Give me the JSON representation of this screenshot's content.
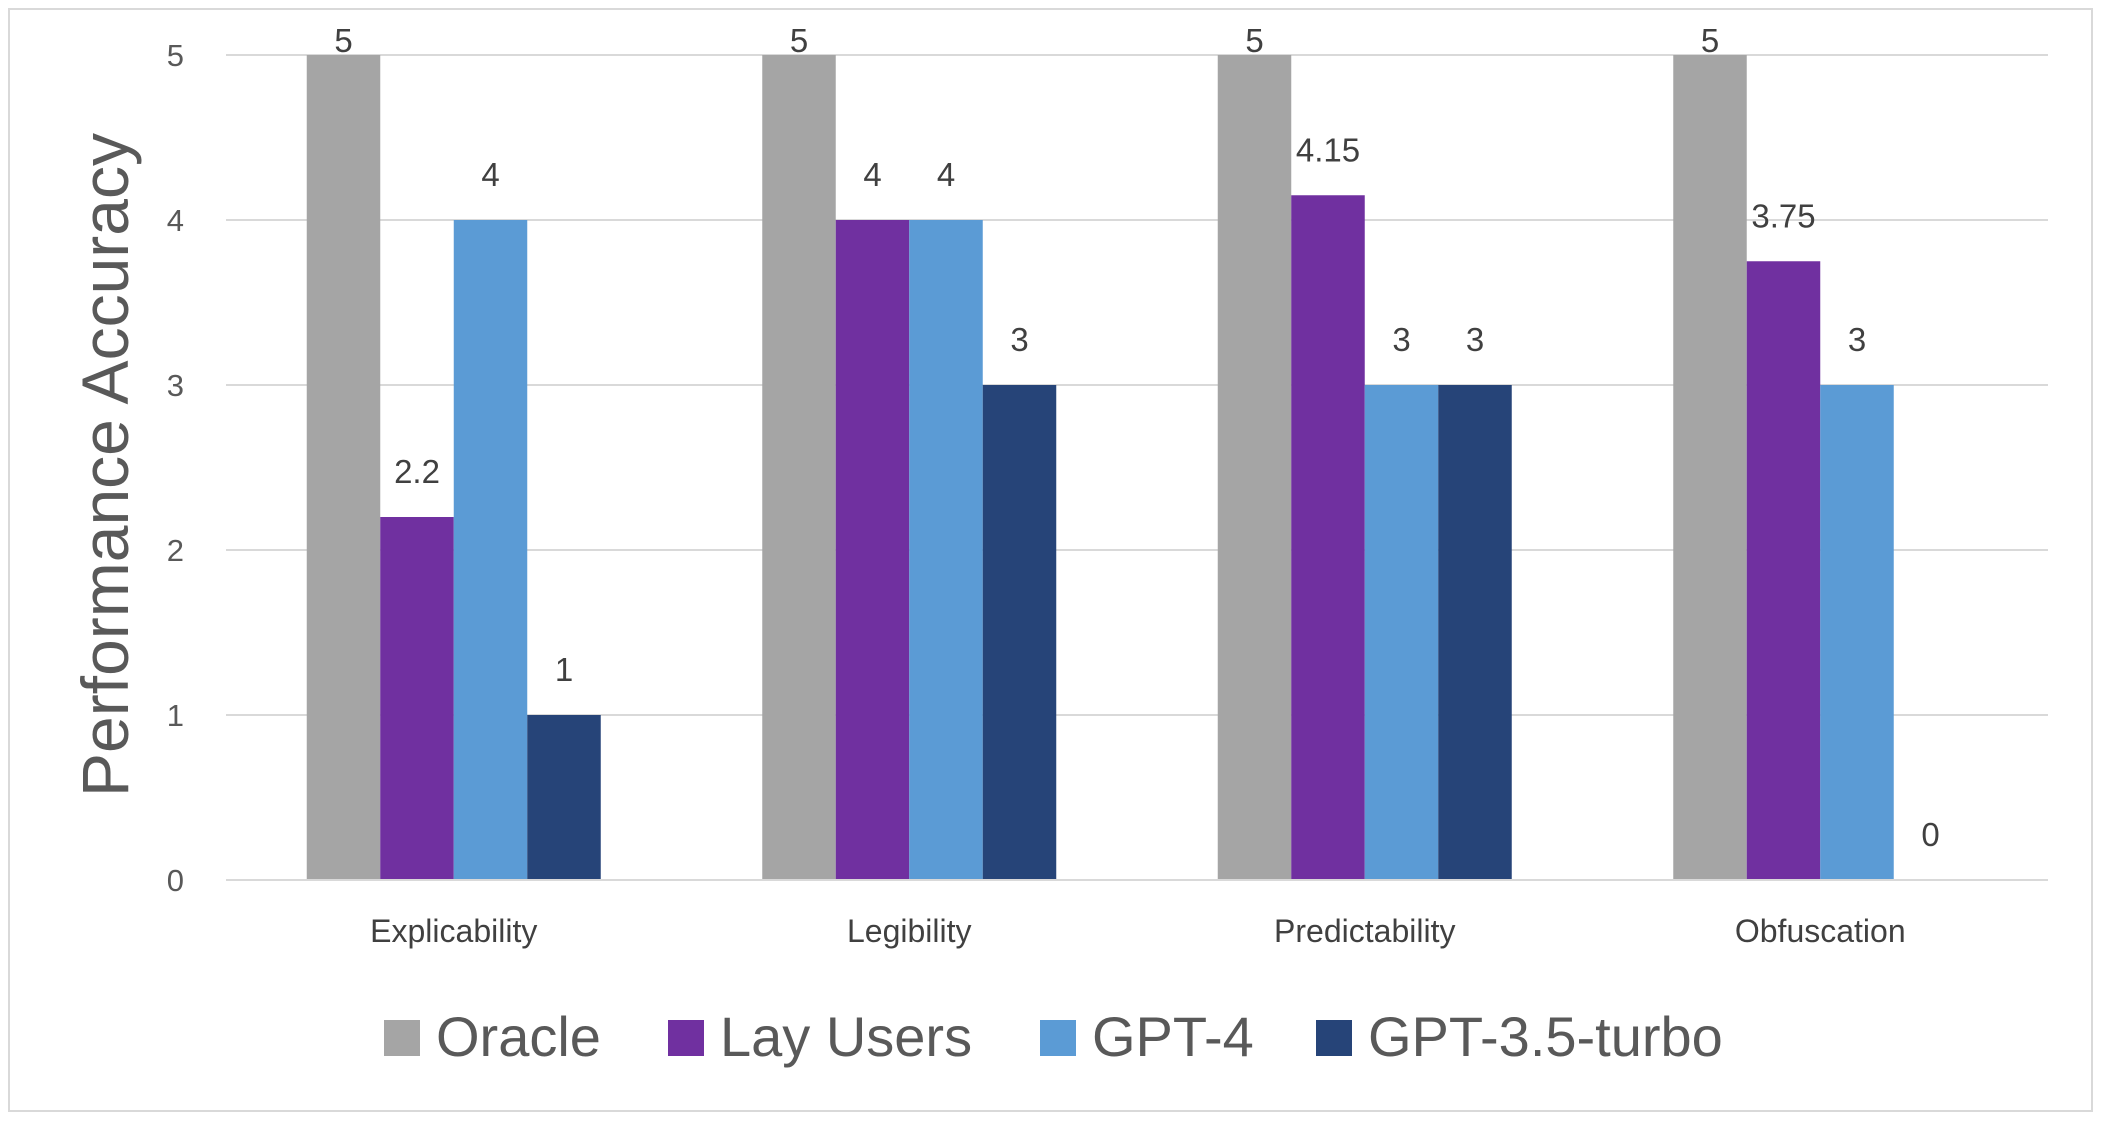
{
  "chart_data": {
    "type": "bar",
    "title": "",
    "xlabel": "",
    "ylabel": "Performance Accuracy",
    "ylim": [
      0,
      5
    ],
    "yticks": [
      0,
      1,
      2,
      3,
      4,
      5
    ],
    "grid": true,
    "legend_position": "bottom",
    "categories": [
      "Explicability",
      "Legibility",
      "Predictability",
      "Obfuscation"
    ],
    "series": [
      {
        "name": "Oracle",
        "color": "#a5a5a5",
        "values": [
          5,
          5,
          5,
          5
        ],
        "labels": [
          "5",
          "5",
          "5",
          "5"
        ]
      },
      {
        "name": "Lay Users",
        "color": "#7030a0",
        "values": [
          2.2,
          4,
          4.15,
          3.75
        ],
        "labels": [
          "2.2",
          "4",
          "4.15",
          "3.75"
        ]
      },
      {
        "name": "GPT-4",
        "color": "#5b9bd5",
        "values": [
          4,
          4,
          3,
          3
        ],
        "labels": [
          "4",
          "4",
          "3",
          "3"
        ]
      },
      {
        "name": "GPT-3.5-turbo",
        "color": "#264478",
        "values": [
          1,
          3,
          3,
          0
        ],
        "labels": [
          "1",
          "3",
          "3",
          "0"
        ]
      }
    ]
  }
}
